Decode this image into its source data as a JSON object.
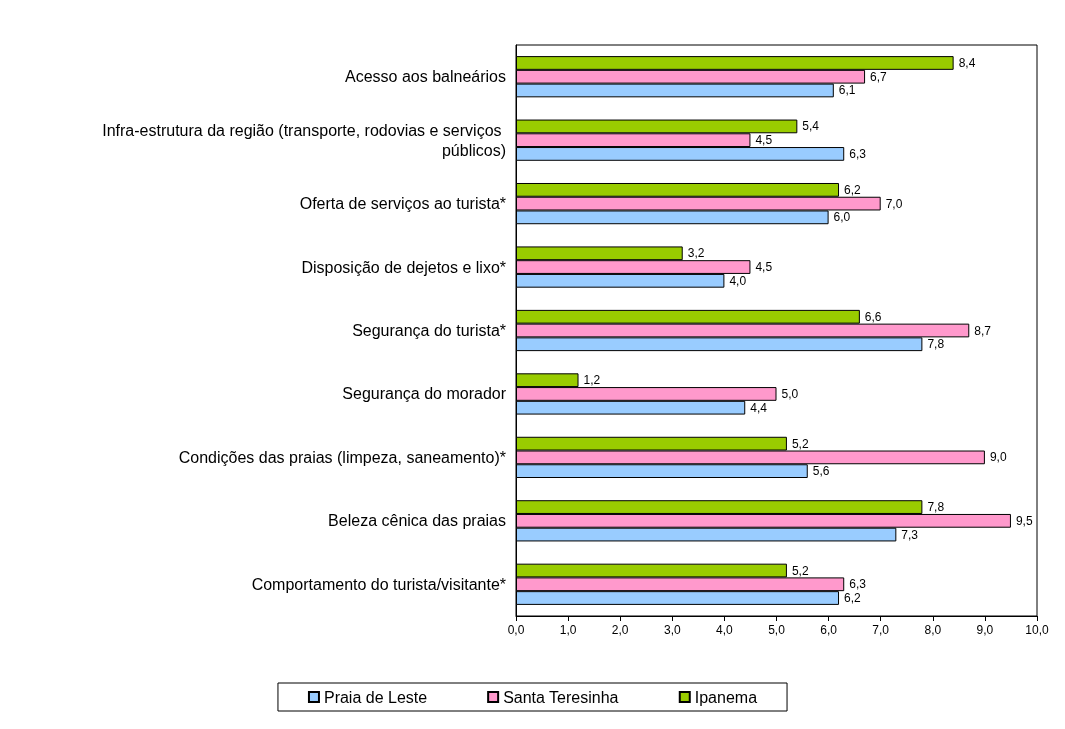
{
  "chart_data": {
    "type": "bar",
    "orientation": "horizontal",
    "categories": [
      "Acesso aos balneários",
      "Infra-estrutura da região (transporte, rodovias e serviços públicos)",
      "Oferta de serviços ao turista*",
      "Disposição de dejetos e lixo*",
      "Segurança do turista*",
      "Segurança do morador",
      "Condições das praias (limpeza, saneamento)*",
      "Beleza cênica das praias",
      "Comportamento do turista/visitante*"
    ],
    "series": [
      {
        "name": "Praia de Leste",
        "color": "#99ccff",
        "values": [
          6.1,
          6.3,
          6.0,
          4.0,
          7.8,
          4.4,
          5.6,
          7.3,
          6.2
        ],
        "value_labels": [
          "6,1",
          "6,3",
          "6,0",
          "4,0",
          "7,8",
          "4,4",
          "5,6",
          "7,3",
          "6,2"
        ]
      },
      {
        "name": "Santa Teresinha",
        "color": "#ff99cc",
        "values": [
          6.7,
          4.5,
          7.0,
          4.5,
          8.7,
          5.0,
          9.0,
          9.5,
          6.3
        ],
        "value_labels": [
          "6,7",
          "4,5",
          "7,0",
          "4,5",
          "8,7",
          "5,0",
          "9,0",
          "9,5",
          "6,3"
        ]
      },
      {
        "name": "Ipanema",
        "color": "#99cc00",
        "values": [
          8.4,
          5.4,
          6.2,
          3.2,
          6.6,
          1.2,
          5.2,
          7.8,
          5.2
        ],
        "value_labels": [
          "8,4",
          "5,4",
          "6,2",
          "3,2",
          "6,6",
          "1,2",
          "5,2",
          "7,8",
          "5,2"
        ]
      }
    ],
    "xlim": [
      0,
      10
    ],
    "xticks": [
      {
        "value": 0,
        "label": "0,0"
      },
      {
        "value": 1,
        "label": "1,0"
      },
      {
        "value": 2,
        "label": "2,0"
      },
      {
        "value": 3,
        "label": "3,0"
      },
      {
        "value": 4,
        "label": "4,0"
      },
      {
        "value": 5,
        "label": "5,0"
      },
      {
        "value": 6,
        "label": "6,0"
      },
      {
        "value": 7,
        "label": "7,0"
      },
      {
        "value": 8,
        "label": "8,0"
      },
      {
        "value": 9,
        "label": "9,0"
      },
      {
        "value": 10,
        "label": "10,0"
      }
    ],
    "grid": false,
    "legend": "bottom"
  }
}
